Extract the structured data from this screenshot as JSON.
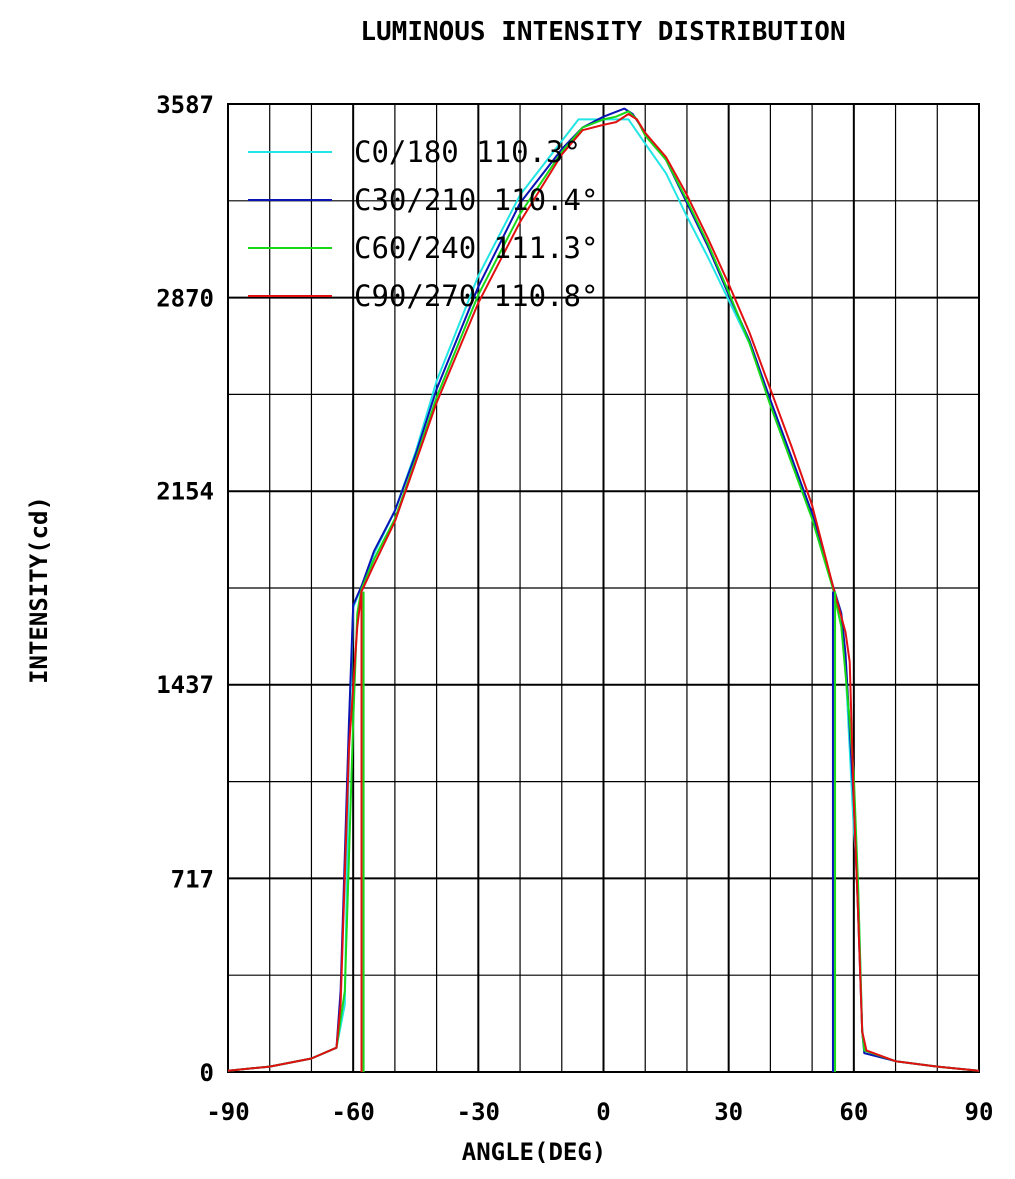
{
  "chart_data": {
    "type": "line",
    "title": "LUMINOUS INTENSITY DISTRIBUTION",
    "xlabel": "ANGLE(DEG)",
    "ylabel": "INTENSITY(cd)",
    "xlim": [
      -90,
      90
    ],
    "ylim": [
      0,
      3587
    ],
    "x_ticks": [
      -90,
      -60,
      -30,
      0,
      30,
      60,
      90
    ],
    "x_tick_labels": [
      "-90",
      "-60",
      "-30",
      "0",
      "30",
      "60",
      "90"
    ],
    "y_ticks": [
      0,
      717,
      1437,
      2154,
      2870,
      3587
    ],
    "y_tick_labels": [
      "0",
      "717",
      "1437",
      "2154",
      "2870",
      "3587"
    ],
    "grid": true,
    "legend_position": "top-left",
    "series": [
      {
        "name": "C0/180 110.3°",
        "color": "#22e5e5",
        "points": [
          [
            -90,
            5
          ],
          [
            -80,
            20
          ],
          [
            -70,
            50
          ],
          [
            -64,
            90
          ],
          [
            -62,
            250
          ],
          [
            -61,
            1200
          ],
          [
            -60,
            1720
          ],
          [
            -58,
            1800
          ],
          [
            -55,
            1920
          ],
          [
            -50,
            2080
          ],
          [
            -45,
            2300
          ],
          [
            -40,
            2560
          ],
          [
            -30,
            2950
          ],
          [
            -20,
            3250
          ],
          [
            -10,
            3450
          ],
          [
            -6,
            3530
          ],
          [
            0,
            3530
          ],
          [
            6,
            3530
          ],
          [
            10,
            3440
          ],
          [
            15,
            3330
          ],
          [
            20,
            3170
          ],
          [
            25,
            3020
          ],
          [
            30,
            2860
          ],
          [
            35,
            2700
          ],
          [
            40,
            2480
          ],
          [
            45,
            2280
          ],
          [
            50,
            2060
          ],
          [
            55,
            1800
          ],
          [
            57,
            1700
          ],
          [
            58,
            1500
          ],
          [
            60,
            900
          ],
          [
            61,
            700
          ],
          [
            62,
            160
          ],
          [
            62.5,
            80
          ],
          [
            70,
            40
          ],
          [
            80,
            20
          ],
          [
            90,
            5
          ]
        ]
      },
      {
        "name": "C30/210 110.4°",
        "color": "#0a14b4",
        "points": [
          [
            -90,
            5
          ],
          [
            -80,
            20
          ],
          [
            -70,
            50
          ],
          [
            -64,
            90
          ],
          [
            -63,
            300
          ],
          [
            -61,
            1300
          ],
          [
            -60,
            1730
          ],
          [
            -58,
            1800
          ],
          [
            -55,
            1930
          ],
          [
            -50,
            2080
          ],
          [
            -45,
            2290
          ],
          [
            -40,
            2530
          ],
          [
            -30,
            2910
          ],
          [
            -20,
            3220
          ],
          [
            -10,
            3420
          ],
          [
            -5,
            3500
          ],
          [
            0,
            3540
          ],
          [
            5,
            3570
          ],
          [
            7,
            3550
          ],
          [
            10,
            3480
          ],
          [
            15,
            3380
          ],
          [
            20,
            3220
          ],
          [
            25,
            3060
          ],
          [
            30,
            2880
          ],
          [
            35,
            2710
          ],
          [
            40,
            2490
          ],
          [
            45,
            2280
          ],
          [
            50,
            2070
          ],
          [
            55,
            1800
          ],
          [
            57,
            1700
          ],
          [
            58,
            1550
          ],
          [
            60,
            1000
          ],
          [
            61,
            600
          ],
          [
            62,
            150
          ],
          [
            62.5,
            70
          ],
          [
            70,
            40
          ],
          [
            80,
            20
          ],
          [
            90,
            5
          ]
        ]
      },
      {
        "name": "C60/240 111.3°",
        "color": "#18d818",
        "points": [
          [
            -90,
            5
          ],
          [
            -80,
            20
          ],
          [
            -70,
            50
          ],
          [
            -64,
            90
          ],
          [
            -62,
            300
          ],
          [
            -60,
            1300
          ],
          [
            -59,
            1700
          ],
          [
            -58,
            1790
          ],
          [
            -55,
            1900
          ],
          [
            -50,
            2050
          ],
          [
            -45,
            2270
          ],
          [
            -40,
            2500
          ],
          [
            -30,
            2880
          ],
          [
            -20,
            3180
          ],
          [
            -10,
            3410
          ],
          [
            -5,
            3500
          ],
          [
            0,
            3530
          ],
          [
            3,
            3540
          ],
          [
            6,
            3560
          ],
          [
            8,
            3530
          ],
          [
            10,
            3470
          ],
          [
            15,
            3380
          ],
          [
            20,
            3230
          ],
          [
            25,
            3070
          ],
          [
            30,
            2890
          ],
          [
            35,
            2700
          ],
          [
            40,
            2470
          ],
          [
            45,
            2260
          ],
          [
            50,
            2050
          ],
          [
            55,
            1790
          ],
          [
            57,
            1650
          ],
          [
            59,
            1300
          ],
          [
            60,
            1100
          ],
          [
            61,
            700
          ],
          [
            62,
            150
          ],
          [
            62.5,
            80
          ],
          [
            70,
            40
          ],
          [
            80,
            20
          ],
          [
            90,
            5
          ]
        ]
      },
      {
        "name": "C90/270 110.8°",
        "color": "#e01010",
        "points": [
          [
            -90,
            5
          ],
          [
            -80,
            20
          ],
          [
            -70,
            50
          ],
          [
            -64,
            90
          ],
          [
            -63,
            250
          ],
          [
            -61,
            1200
          ],
          [
            -59,
            1650
          ],
          [
            -58,
            1780
          ],
          [
            -55,
            1880
          ],
          [
            -50,
            2040
          ],
          [
            -45,
            2260
          ],
          [
            -40,
            2480
          ],
          [
            -30,
            2850
          ],
          [
            -20,
            3150
          ],
          [
            -10,
            3400
          ],
          [
            -5,
            3490
          ],
          [
            0,
            3510
          ],
          [
            3,
            3520
          ],
          [
            6,
            3550
          ],
          [
            8,
            3530
          ],
          [
            10,
            3480
          ],
          [
            15,
            3390
          ],
          [
            20,
            3250
          ],
          [
            25,
            3090
          ],
          [
            30,
            2920
          ],
          [
            35,
            2740
          ],
          [
            40,
            2530
          ],
          [
            45,
            2320
          ],
          [
            50,
            2100
          ],
          [
            55,
            1800
          ],
          [
            58,
            1630
          ],
          [
            59,
            1520
          ],
          [
            60,
            1000
          ],
          [
            61,
            600
          ],
          [
            62,
            150
          ],
          [
            63,
            80
          ],
          [
            70,
            40
          ],
          [
            80,
            20
          ],
          [
            90,
            5
          ]
        ]
      }
    ],
    "vertical_drop_lines": [
      {
        "x": -58,
        "color": "#e01010"
      },
      {
        "x": -57.5,
        "color": "#18d818"
      },
      {
        "x": 55,
        "color": "#0a14b4"
      },
      {
        "x": 55.5,
        "color": "#18d818"
      }
    ]
  }
}
